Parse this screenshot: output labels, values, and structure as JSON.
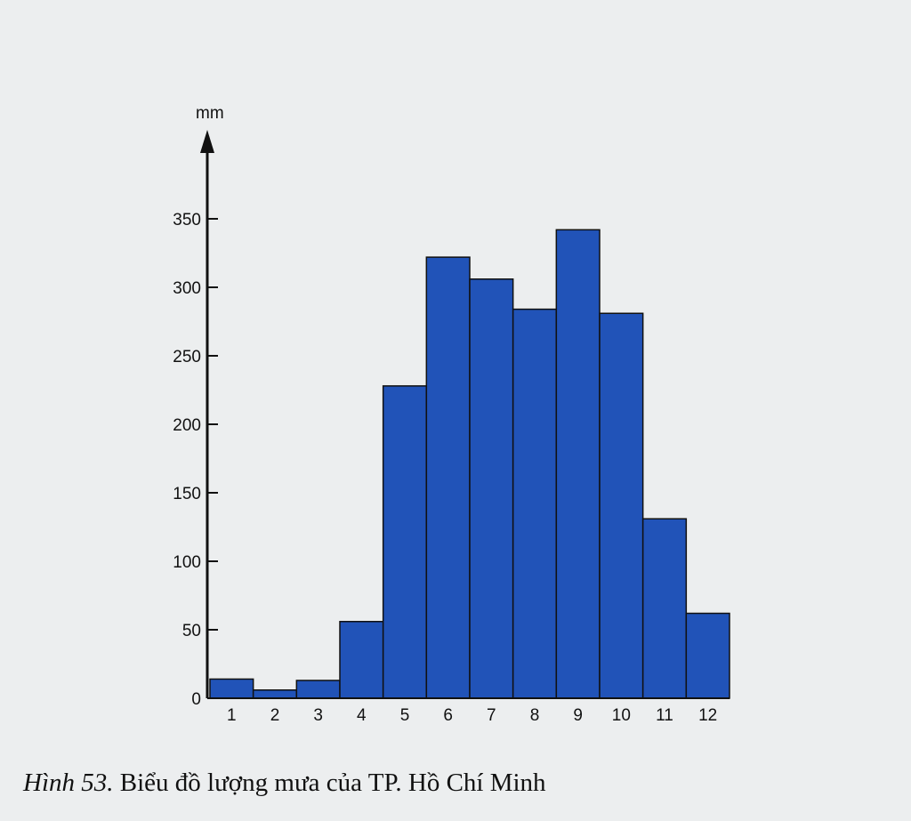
{
  "chart_data": {
    "type": "bar",
    "figure_label": "Hình 53.",
    "title": "Biểu đồ lượng mưa của TP. Hồ Chí Minh",
    "y_label": "mm",
    "categories": [
      "1",
      "2",
      "3",
      "4",
      "5",
      "6",
      "7",
      "8",
      "9",
      "10",
      "11",
      "12"
    ],
    "values": [
      14,
      6,
      13,
      56,
      228,
      322,
      306,
      284,
      342,
      281,
      131,
      62
    ],
    "color": "#2153b8",
    "ylim": [
      0,
      400
    ],
    "yticks": [
      0,
      50,
      100,
      150,
      200,
      250,
      300,
      350
    ]
  }
}
